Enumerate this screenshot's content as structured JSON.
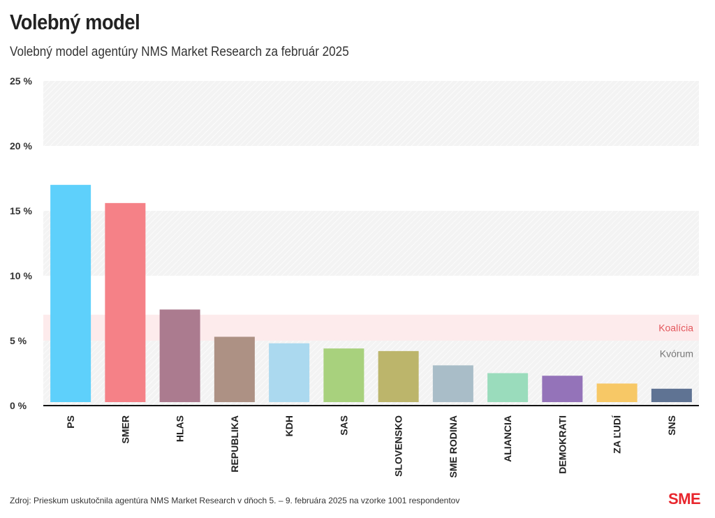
{
  "header": {
    "title": "Volebný model",
    "subtitle": "Volebný model agentúry NMS Market Research za február 2025"
  },
  "chart_data": {
    "type": "bar",
    "title": "Volebný model",
    "subtitle": "Volebný model agentúry NMS Market Research za február 2025",
    "xlabel": "",
    "ylabel": "",
    "ylim": [
      0,
      25
    ],
    "yticks": [
      0,
      5,
      10,
      15,
      20,
      25
    ],
    "ytick_labels": [
      "0 %",
      "5 %",
      "10 %",
      "15 %",
      "20 %",
      "25 %"
    ],
    "grid": "alternating horizontal bands",
    "categories": [
      "PS",
      "SMER",
      "HLAS",
      "REPUBLIKA",
      "KDH",
      "SAS",
      "SLOVENSKO",
      "SME RODINA",
      "ALIANCIA",
      "DEMOKRATI",
      "ZA ĽUDÍ",
      "SNS"
    ],
    "values": [
      17.0,
      15.6,
      7.4,
      5.3,
      4.8,
      4.4,
      4.2,
      3.1,
      2.5,
      2.3,
      1.7,
      1.3
    ],
    "colors": [
      "#5ed0fb",
      "#f58187",
      "#ab7b8f",
      "#ad9184",
      "#abd9ef",
      "#a8d17d",
      "#bcb56b",
      "#a9bdc8",
      "#9adcbc",
      "#9473b9",
      "#f7c866",
      "#5f7393"
    ],
    "reference_bands": [
      {
        "label": "Koalícia",
        "from": 5,
        "to": 7,
        "color": "#e3565b"
      },
      {
        "label": "Kvórum",
        "from": 0,
        "to": 5,
        "color": "#777777"
      }
    ]
  },
  "footer": {
    "source": "Zdroj: Prieskum uskutočnila agentúra NMS Market Research v dňoch 5. – 9. februára 2025 na vzorke 1001 respondentov",
    "logo": "SME"
  },
  "colors": {
    "logo": "#e8262d",
    "band_fill": "#f4f4f4",
    "coalition_band": "#fde8e9"
  }
}
